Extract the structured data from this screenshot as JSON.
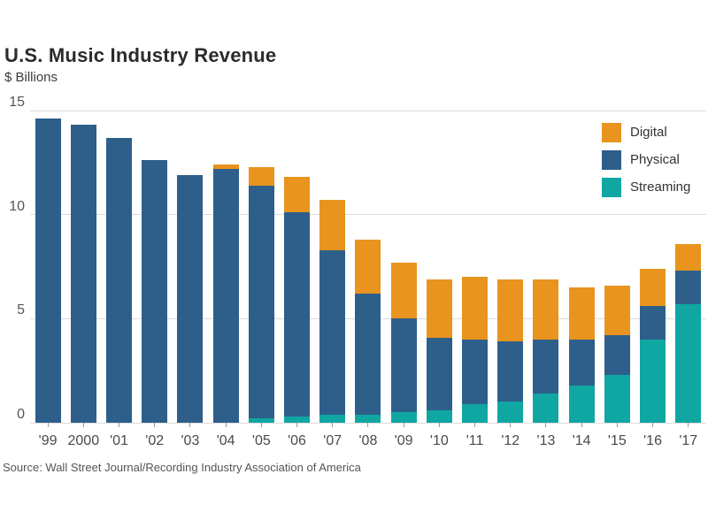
{
  "header": {
    "title": "U.S. Music Industry Revenue",
    "subtitle": "$ Billions"
  },
  "footer": {
    "source": "Source: Wall Street Journal/Recording Industry Association of America"
  },
  "chart_data": {
    "type": "bar",
    "stacked": true,
    "title": "U.S. Music Industry Revenue",
    "subtitle": "$ Billions",
    "ylabel": "$ Billions",
    "xlabel": "",
    "ylim": [
      0,
      15
    ],
    "y_ticks": [
      0,
      5,
      10,
      15
    ],
    "grid": true,
    "legend_position": "top-right",
    "categories": [
      "'99",
      "2000",
      "'01",
      "'02",
      "'03",
      "'04",
      "'05",
      "'06",
      "'07",
      "'08",
      "'09",
      "'10",
      "'11",
      "'12",
      "'13",
      "'14",
      "'15",
      "'16",
      "'17"
    ],
    "series": [
      {
        "name": "Streaming",
        "color": "#10A7A3",
        "values": [
          0,
          0,
          0,
          0,
          0,
          0,
          0.2,
          0.3,
          0.4,
          0.4,
          0.5,
          0.6,
          0.9,
          1.0,
          1.4,
          1.8,
          2.3,
          4.0,
          5.7
        ]
      },
      {
        "name": "Physical",
        "color": "#2D5F8A",
        "values": [
          14.6,
          14.3,
          13.7,
          12.6,
          11.9,
          12.2,
          11.2,
          9.8,
          7.9,
          5.8,
          4.5,
          3.5,
          3.1,
          2.9,
          2.6,
          2.2,
          1.9,
          1.6,
          1.6
        ]
      },
      {
        "name": "Digital",
        "color": "#E8941E",
        "values": [
          0,
          0,
          0,
          0,
          0,
          0.2,
          0.9,
          1.7,
          2.4,
          2.6,
          2.7,
          2.8,
          3.0,
          3.0,
          2.9,
          2.5,
          2.4,
          1.8,
          1.3
        ]
      }
    ],
    "legend": [
      {
        "label": "Digital",
        "color": "#E8941E"
      },
      {
        "label": "Physical",
        "color": "#2D5F8A"
      },
      {
        "label": "Streaming",
        "color": "#10A7A3"
      }
    ],
    "colors": {
      "gridline": "#dcdcdc",
      "axis_text": "#555555",
      "title_text": "#2b2b2b"
    }
  }
}
